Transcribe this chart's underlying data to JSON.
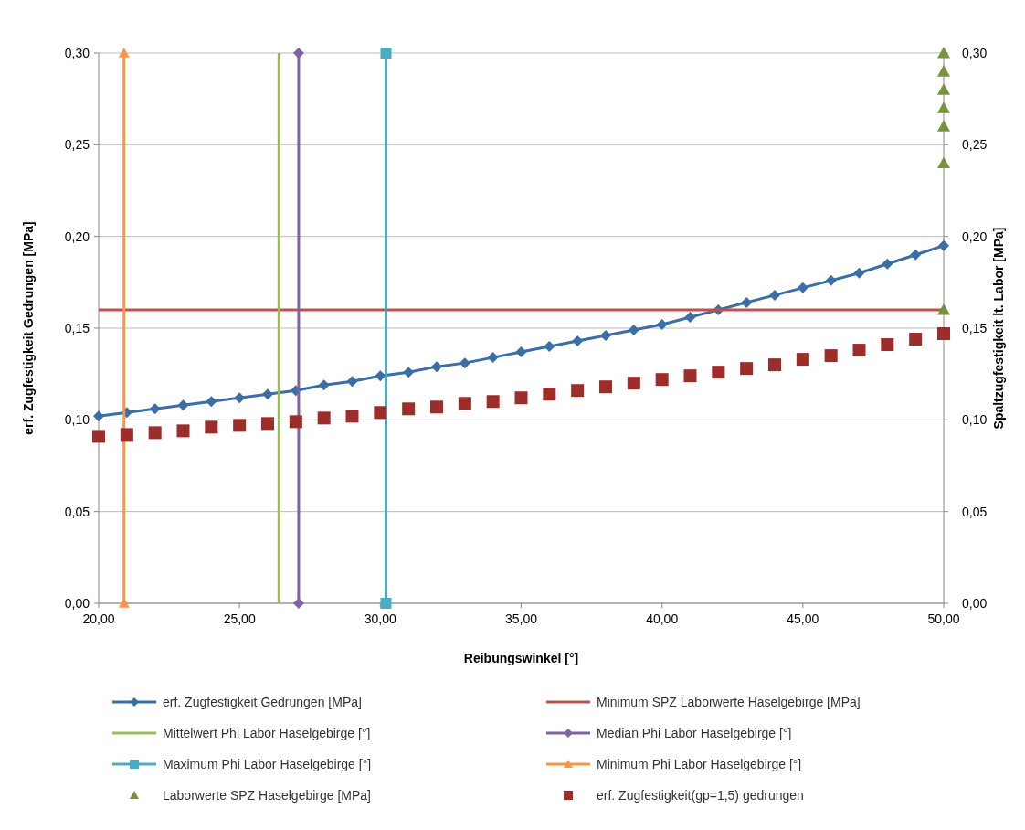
{
  "chart_data": {
    "type": "line",
    "xlabel": "Reibungswinkel [°]",
    "ylabel": "erf. Zugfestigkeit Gedrungen [MPa]",
    "y2label": "Spaltzugfestigkeit lt. Labor [MPa]",
    "xlim": [
      20,
      50
    ],
    "xticks": [
      {
        "value": 20,
        "label": "20,00"
      },
      {
        "value": 25,
        "label": "25,00"
      },
      {
        "value": 30,
        "label": "30,00"
      },
      {
        "value": 35,
        "label": "35,00"
      },
      {
        "value": 40,
        "label": "40,00"
      },
      {
        "value": 45,
        "label": "45,00"
      },
      {
        "value": 50,
        "label": "50,00"
      }
    ],
    "ylim": [
      0,
      0.3
    ],
    "yticks": [
      {
        "value": 0,
        "label": "0,00"
      },
      {
        "value": 0.05,
        "label": "0,05"
      },
      {
        "value": 0.1,
        "label": "0,10"
      },
      {
        "value": 0.15,
        "label": "0,15"
      },
      {
        "value": 0.2,
        "label": "0,20"
      },
      {
        "value": 0.25,
        "label": "0,25"
      },
      {
        "value": 0.3,
        "label": "0,30"
      }
    ],
    "y2lim": [
      0,
      0.3
    ],
    "y2ticks": [
      {
        "value": 0,
        "label": "0,00"
      },
      {
        "value": 0.05,
        "label": "0,05"
      },
      {
        "value": 0.1,
        "label": "0,10"
      },
      {
        "value": 0.15,
        "label": "0,15"
      },
      {
        "value": 0.2,
        "label": "0,20"
      },
      {
        "value": 0.25,
        "label": "0,25"
      },
      {
        "value": 0.3,
        "label": "0,30"
      }
    ],
    "grid": "y",
    "legend": "bottom",
    "series": [
      {
        "name": "erf. Zugfestigkeit Gedrungen [MPa]",
        "marker": "diamond",
        "color": "#3a6ea5",
        "x": [
          20,
          21,
          22,
          23,
          24,
          25,
          26,
          27,
          28,
          29,
          30,
          31,
          32,
          33,
          34,
          35,
          36,
          37,
          38,
          39,
          40,
          41,
          42,
          43,
          44,
          45,
          46,
          47,
          48,
          49,
          50
        ],
        "values": [
          0.102,
          0.104,
          0.106,
          0.108,
          0.11,
          0.112,
          0.114,
          0.116,
          0.119,
          0.121,
          0.124,
          0.126,
          0.129,
          0.131,
          0.134,
          0.137,
          0.14,
          0.143,
          0.146,
          0.149,
          0.152,
          0.156,
          0.16,
          0.164,
          0.168,
          0.172,
          0.176,
          0.18,
          0.185,
          0.19,
          0.195
        ]
      },
      {
        "name": "Minimum SPZ Laborwerte Haselgebirge [MPa]",
        "marker": "none",
        "color": "#c0504d",
        "x": [
          20,
          50
        ],
        "values": [
          0.16,
          0.16
        ]
      },
      {
        "name": "Mittelwert Phi Labor Haselgebirge [°]",
        "marker": "none",
        "color": "#9bbb59",
        "x": [
          26.4,
          26.4
        ],
        "values": [
          0,
          0.3
        ]
      },
      {
        "name": "Median Phi Labor Haselgebirge [°]",
        "marker": "diamond",
        "color": "#8064a2",
        "x": [
          27.1,
          27.1
        ],
        "values": [
          0,
          0.3
        ]
      },
      {
        "name": "Maximum Phi Labor Haselgebirge [°]",
        "marker": "square",
        "color": "#4bacc6",
        "x": [
          30.2,
          30.2
        ],
        "values": [
          0,
          0.3
        ]
      },
      {
        "name": "Minimum Phi Labor Haselgebirge [°]",
        "marker": "triangle",
        "color": "#f79646",
        "x": [
          20.9,
          20.9
        ],
        "values": [
          0,
          0.3
        ]
      },
      {
        "name": "Laborwerte SPZ Haselgebirge [MPa]",
        "type": "scatter",
        "marker": "triangle",
        "color": "#77933c",
        "x": [
          50,
          50,
          50,
          50,
          50,
          50,
          50
        ],
        "values": [
          0.3,
          0.29,
          0.28,
          0.27,
          0.26,
          0.24,
          0.16
        ]
      },
      {
        "name": "erf. Zugfestigkeit(gp=1,5) gedrungen",
        "type": "scatter",
        "marker": "square",
        "color": "#9b2d2a",
        "x": [
          20,
          21,
          22,
          23,
          24,
          25,
          26,
          27,
          28,
          29,
          30,
          31,
          32,
          33,
          34,
          35,
          36,
          37,
          38,
          39,
          40,
          41,
          42,
          43,
          44,
          45,
          46,
          47,
          48,
          49,
          50
        ],
        "values": [
          0.091,
          0.092,
          0.093,
          0.094,
          0.096,
          0.097,
          0.098,
          0.099,
          0.101,
          0.102,
          0.104,
          0.106,
          0.107,
          0.109,
          0.11,
          0.112,
          0.114,
          0.116,
          0.118,
          0.12,
          0.122,
          0.124,
          0.126,
          0.128,
          0.13,
          0.133,
          0.135,
          0.138,
          0.141,
          0.144,
          0.147
        ]
      }
    ]
  }
}
